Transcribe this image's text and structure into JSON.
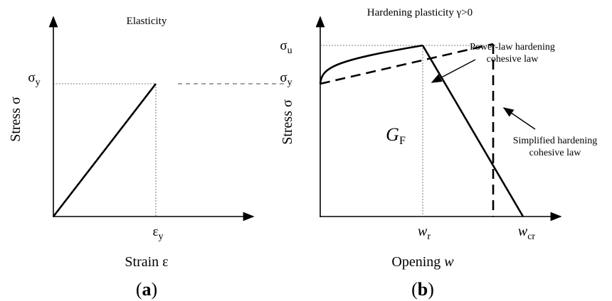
{
  "panel_a": {
    "title": "Elasticity",
    "y_label": "Stress σ",
    "x_label": "Strain ε",
    "y_tick": {
      "symbol": "σ",
      "subscript": "y"
    },
    "x_tick": {
      "symbol": "ε",
      "subscript": "y"
    },
    "caption": "a"
  },
  "panel_b": {
    "title": "Hardening plasticity γ>0",
    "y_label": "Stress σ",
    "x_label_text": "Opening",
    "x_label_symbol": "w",
    "y_ticks": [
      {
        "symbol": "σ",
        "subscript": "u"
      },
      {
        "symbol": "σ",
        "subscript": "y"
      }
    ],
    "x_ticks": [
      {
        "symbol": "w",
        "subscript": "r"
      },
      {
        "symbol": "w",
        "subscript": "cr"
      }
    ],
    "area_label": {
      "symbol": "G",
      "subscript": "F"
    },
    "annotations": [
      {
        "lines": [
          "Power-law hardening",
          "cohesive law"
        ]
      },
      {
        "lines": [
          "Simplified hardening",
          "cohesive law"
        ]
      }
    ],
    "caption": "b"
  }
}
